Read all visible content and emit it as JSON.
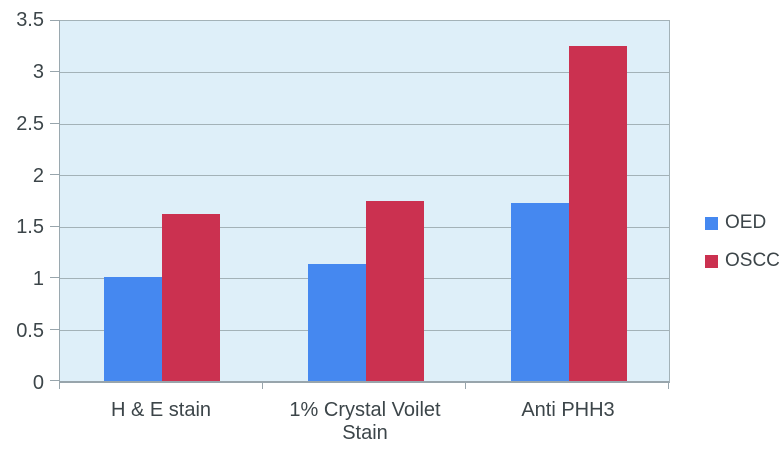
{
  "chart_data": {
    "type": "bar",
    "title": "",
    "xlabel": "",
    "ylabel": "",
    "categories": [
      "H & E stain",
      "1% Crystal Voilet Stain",
      "Anti PHH3"
    ],
    "series": [
      {
        "name": "OED",
        "color": "#4588F0",
        "values": [
          1.01,
          1.14,
          1.73
        ]
      },
      {
        "name": "OSCC",
        "color": "#CB3150",
        "values": [
          1.62,
          1.75,
          3.26
        ]
      }
    ],
    "ylim": [
      0,
      3.5
    ],
    "ytick_step": 0.5,
    "ytick_labels": [
      "0",
      "0.5",
      "1",
      "1.5",
      "2",
      "2.5",
      "3",
      "3.5"
    ],
    "grid": true,
    "legend_position": "right",
    "colors": {
      "plot_background": "#DEEFF9",
      "gridline": "#A3B2B8",
      "axis": "#98A5AC",
      "text": "#3C4549"
    }
  }
}
